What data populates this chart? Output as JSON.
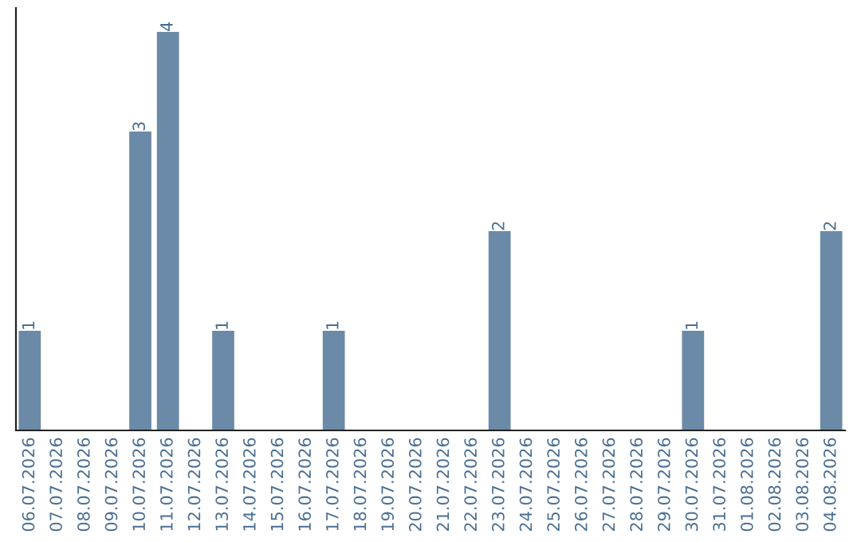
{
  "chart_data": {
    "type": "bar",
    "categories": [
      "06.07.2026",
      "07.07.2026",
      "08.07.2026",
      "09.07.2026",
      "10.07.2026",
      "11.07.2026",
      "12.07.2026",
      "13.07.2026",
      "14.07.2026",
      "15.07.2026",
      "16.07.2026",
      "17.07.2026",
      "18.07.2026",
      "19.07.2026",
      "20.07.2026",
      "21.07.2026",
      "22.07.2026",
      "23.07.2026",
      "24.07.2026",
      "25.07.2026",
      "26.07.2026",
      "27.07.2026",
      "28.07.2026",
      "29.07.2026",
      "30.07.2026",
      "31.07.2026",
      "01.08.2026",
      "02.08.2026",
      "03.08.2026",
      "04.08.2026"
    ],
    "values": [
      1,
      0,
      0,
      0,
      3,
      4,
      0,
      1,
      0,
      0,
      0,
      1,
      0,
      0,
      0,
      0,
      0,
      2,
      0,
      0,
      0,
      0,
      0,
      0,
      1,
      0,
      0,
      0,
      0,
      2
    ],
    "value_labels": [
      "1",
      null,
      null,
      null,
      "3",
      "4",
      null,
      "1",
      null,
      null,
      null,
      "1",
      null,
      null,
      null,
      null,
      null,
      "2",
      null,
      null,
      null,
      null,
      null,
      null,
      "1",
      null,
      null,
      null,
      null,
      "2"
    ],
    "color": "#6b8aa8",
    "tick_labels": "x",
    "grid": false,
    "legend": false
  }
}
